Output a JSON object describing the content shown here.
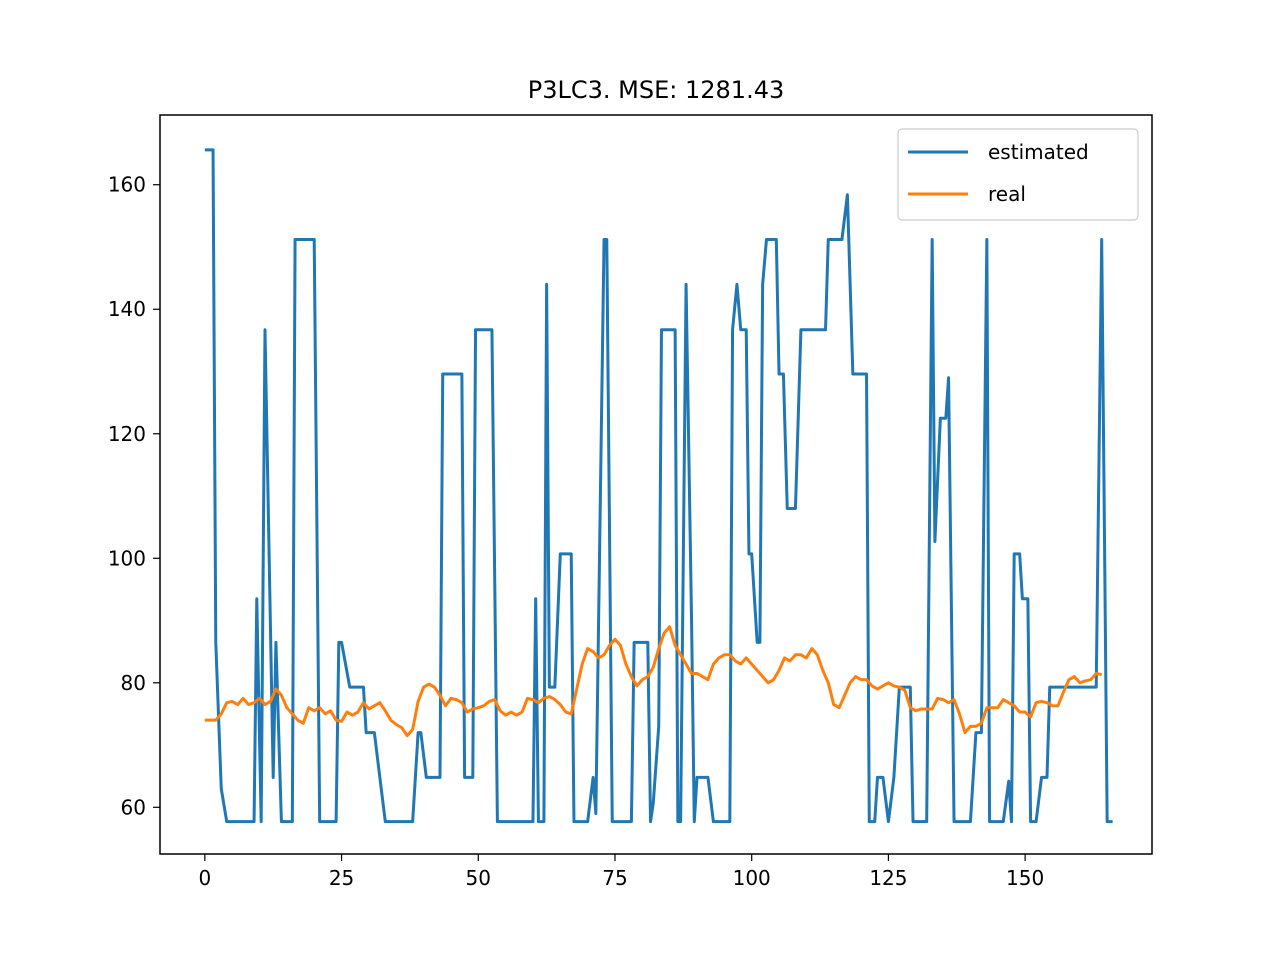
{
  "chart_data": {
    "type": "line",
    "title": "P3LC3. MSE: 1281.43",
    "xlabel": "",
    "ylabel": "",
    "xlim": [
      -8.2,
      173.2
    ],
    "ylim": [
      52.5,
      171.2
    ],
    "x_ticks": [
      0,
      25,
      50,
      75,
      100,
      125,
      150
    ],
    "y_ticks": [
      60,
      80,
      100,
      120,
      140,
      160
    ],
    "grid": false,
    "legend_position": "upper right",
    "series": [
      {
        "name": "estimated",
        "color": "#1f77b4",
        "points": [
          [
            0,
            165.6
          ],
          [
            1.5,
            165.6
          ],
          [
            2,
            86.5
          ],
          [
            3,
            63
          ],
          [
            4,
            57.7
          ],
          [
            5,
            57.7
          ],
          [
            9,
            57.7
          ],
          [
            9.5,
            93.5
          ],
          [
            10.3,
            57.7
          ],
          [
            11,
            136.7
          ],
          [
            12.5,
            64.8
          ],
          [
            13,
            86.5
          ],
          [
            14,
            57.7
          ],
          [
            16,
            57.7
          ],
          [
            16.5,
            151.2
          ],
          [
            20,
            151.2
          ],
          [
            21,
            57.7
          ],
          [
            24,
            57.7
          ],
          [
            24.5,
            86.5
          ],
          [
            25,
            86.5
          ],
          [
            26.5,
            79.3
          ],
          [
            29,
            79.3
          ],
          [
            29.5,
            72
          ],
          [
            31,
            72
          ],
          [
            32,
            64.8
          ],
          [
            33,
            57.7
          ],
          [
            38,
            57.7
          ],
          [
            39,
            72
          ],
          [
            39.5,
            72
          ],
          [
            40.5,
            64.8
          ],
          [
            43,
            64.8
          ],
          [
            43.5,
            129.6
          ],
          [
            47,
            129.6
          ],
          [
            47.5,
            64.8
          ],
          [
            49,
            64.8
          ],
          [
            49.5,
            136.7
          ],
          [
            52.5,
            136.7
          ],
          [
            53.5,
            57.7
          ],
          [
            60,
            57.7
          ],
          [
            60.5,
            93.5
          ],
          [
            61,
            57.7
          ],
          [
            62,
            57.7
          ],
          [
            62.5,
            144
          ],
          [
            63,
            79.3
          ],
          [
            64,
            79.3
          ],
          [
            65,
            100.7
          ],
          [
            67,
            100.7
          ],
          [
            67.5,
            57.7
          ],
          [
            70,
            57.7
          ],
          [
            71,
            64.8
          ],
          [
            71.5,
            59
          ],
          [
            73,
            151.2
          ],
          [
            73.5,
            151.2
          ],
          [
            74.5,
            57.7
          ],
          [
            78,
            57.7
          ],
          [
            78.5,
            86.5
          ],
          [
            81,
            86.5
          ],
          [
            81.5,
            57.7
          ],
          [
            82,
            60.7
          ],
          [
            83,
            73
          ],
          [
            83.5,
            136.7
          ],
          [
            86,
            136.7
          ],
          [
            86.5,
            57.7
          ],
          [
            87,
            57.7
          ],
          [
            88,
            144
          ],
          [
            89,
            90
          ],
          [
            89.5,
            57.7
          ],
          [
            90,
            64.8
          ],
          [
            92,
            64.8
          ],
          [
            93,
            57.7
          ],
          [
            96,
            57.7
          ],
          [
            96.5,
            136.7
          ],
          [
            97.3,
            144
          ],
          [
            98,
            136.7
          ],
          [
            99,
            136.7
          ],
          [
            99.5,
            100.7
          ],
          [
            100,
            100.7
          ],
          [
            101,
            86.5
          ],
          [
            101.5,
            86.5
          ],
          [
            102,
            144
          ],
          [
            102.7,
            151.2
          ],
          [
            104.5,
            151.2
          ],
          [
            105,
            129.6
          ],
          [
            105.8,
            129.6
          ],
          [
            106.5,
            108
          ],
          [
            108,
            108
          ],
          [
            109,
            136.7
          ],
          [
            113.5,
            136.7
          ],
          [
            114,
            151.2
          ],
          [
            116.5,
            151.2
          ],
          [
            117.5,
            158.4
          ],
          [
            118.5,
            129.6
          ],
          [
            121,
            129.6
          ],
          [
            121.5,
            57.7
          ],
          [
            122.5,
            57.7
          ],
          [
            123,
            64.8
          ],
          [
            124,
            64.8
          ],
          [
            125,
            57.7
          ],
          [
            126,
            64.8
          ],
          [
            127,
            79.3
          ],
          [
            129,
            79.3
          ],
          [
            129.5,
            57.7
          ],
          [
            132,
            57.7
          ],
          [
            133,
            151.2
          ],
          [
            133.5,
            102.7
          ],
          [
            134.5,
            122.5
          ],
          [
            135.5,
            122.5
          ],
          [
            136,
            129
          ],
          [
            137,
            57.7
          ],
          [
            140,
            57.7
          ],
          [
            141,
            72
          ],
          [
            142,
            72
          ],
          [
            143,
            151.2
          ],
          [
            143.5,
            57.7
          ],
          [
            146,
            57.7
          ],
          [
            147,
            64.2
          ],
          [
            147.5,
            57.7
          ],
          [
            148,
            100.7
          ],
          [
            149,
            100.7
          ],
          [
            149.5,
            93.5
          ],
          [
            150.5,
            93.5
          ],
          [
            151,
            57.7
          ],
          [
            152,
            57.7
          ],
          [
            153,
            64.8
          ],
          [
            154,
            64.8
          ],
          [
            154.5,
            79.3
          ],
          [
            163,
            79.3
          ],
          [
            164,
            151.2
          ],
          [
            165,
            57.7
          ],
          [
            166,
            57.7
          ]
        ]
      },
      {
        "name": "real",
        "color": "#ff7f0e",
        "points": [
          [
            0,
            74
          ],
          [
            1,
            74
          ],
          [
            2,
            74
          ],
          [
            3,
            75
          ],
          [
            4,
            76.8
          ],
          [
            5,
            77
          ],
          [
            6,
            76.5
          ],
          [
            7,
            77.5
          ],
          [
            8,
            76.5
          ],
          [
            9,
            76.8
          ],
          [
            10,
            77.5
          ],
          [
            11,
            76.5
          ],
          [
            12,
            77
          ],
          [
            13,
            79
          ],
          [
            14,
            78
          ],
          [
            15,
            76
          ],
          [
            16,
            75
          ],
          [
            17,
            74
          ],
          [
            18,
            73.5
          ],
          [
            19,
            76
          ],
          [
            20,
            75.5
          ],
          [
            21,
            76
          ],
          [
            22,
            75
          ],
          [
            23,
            75.5
          ],
          [
            24,
            74
          ],
          [
            25,
            73.8
          ],
          [
            26,
            75.3
          ],
          [
            27,
            74.8
          ],
          [
            28,
            75.3
          ],
          [
            29,
            76.8
          ],
          [
            30,
            75.8
          ],
          [
            31,
            76.3
          ],
          [
            32,
            76.8
          ],
          [
            33,
            75.5
          ],
          [
            34,
            74
          ],
          [
            35,
            73.3
          ],
          [
            36,
            72.8
          ],
          [
            37,
            71.5
          ],
          [
            38,
            72.5
          ],
          [
            39,
            77
          ],
          [
            40,
            79.3
          ],
          [
            41,
            79.8
          ],
          [
            42,
            79.3
          ],
          [
            43,
            78
          ],
          [
            44,
            76.3
          ],
          [
            45,
            77.5
          ],
          [
            46,
            77.3
          ],
          [
            47,
            76.8
          ],
          [
            48,
            75.3
          ],
          [
            49,
            75.8
          ],
          [
            50,
            76
          ],
          [
            51,
            76.3
          ],
          [
            52,
            77
          ],
          [
            53,
            77.3
          ],
          [
            54,
            75.5
          ],
          [
            55,
            74.8
          ],
          [
            56,
            75.3
          ],
          [
            57,
            74.8
          ],
          [
            58,
            75.3
          ],
          [
            59,
            77.5
          ],
          [
            60,
            77.3
          ],
          [
            61,
            76.8
          ],
          [
            62,
            77.5
          ],
          [
            63,
            77.8
          ],
          [
            64,
            77.3
          ],
          [
            65,
            76.5
          ],
          [
            66,
            75.3
          ],
          [
            67,
            75
          ],
          [
            68,
            79
          ],
          [
            69,
            83
          ],
          [
            70,
            85.5
          ],
          [
            71,
            85
          ],
          [
            72,
            84
          ],
          [
            73,
            84.5
          ],
          [
            74,
            86
          ],
          [
            75,
            87
          ],
          [
            76,
            86
          ],
          [
            77,
            83
          ],
          [
            78,
            81
          ],
          [
            79,
            79.5
          ],
          [
            80,
            80.5
          ],
          [
            81,
            81
          ],
          [
            82,
            82.5
          ],
          [
            83,
            85.5
          ],
          [
            84,
            88
          ],
          [
            85,
            89
          ],
          [
            86,
            86
          ],
          [
            87,
            84.5
          ],
          [
            88,
            83
          ],
          [
            89,
            81.5
          ],
          [
            90,
            81.5
          ],
          [
            91,
            81
          ],
          [
            92,
            80.5
          ],
          [
            93,
            83
          ],
          [
            94,
            84
          ],
          [
            95,
            84.5
          ],
          [
            96,
            84.5
          ],
          [
            97,
            83.5
          ],
          [
            98,
            83
          ],
          [
            99,
            84
          ],
          [
            100,
            83
          ],
          [
            101,
            82
          ],
          [
            102,
            81
          ],
          [
            103,
            80
          ],
          [
            104,
            80.5
          ],
          [
            105,
            82
          ],
          [
            106,
            84
          ],
          [
            107,
            83.5
          ],
          [
            108,
            84.5
          ],
          [
            109,
            84.5
          ],
          [
            110,
            84
          ],
          [
            111,
            85.5
          ],
          [
            112,
            84.5
          ],
          [
            113,
            82
          ],
          [
            114,
            80
          ],
          [
            115,
            76.5
          ],
          [
            116,
            76
          ],
          [
            117,
            78
          ],
          [
            118,
            80
          ],
          [
            119,
            81
          ],
          [
            120,
            80.5
          ],
          [
            121,
            80.5
          ],
          [
            122,
            79.5
          ],
          [
            123,
            79
          ],
          [
            124,
            79.5
          ],
          [
            125,
            80
          ],
          [
            126,
            79.5
          ],
          [
            127,
            79.3
          ],
          [
            128,
            78.8
          ],
          [
            129,
            76
          ],
          [
            130,
            75.5
          ],
          [
            131,
            75.8
          ],
          [
            132,
            75.8
          ],
          [
            133,
            75.8
          ],
          [
            134,
            77.5
          ],
          [
            135,
            77.3
          ],
          [
            136,
            76.8
          ],
          [
            137,
            77.3
          ],
          [
            138,
            75
          ],
          [
            139,
            72
          ],
          [
            140,
            73
          ],
          [
            141,
            73
          ],
          [
            142,
            73.5
          ],
          [
            143,
            76
          ],
          [
            144,
            76
          ],
          [
            145,
            76
          ],
          [
            146,
            77.3
          ],
          [
            147,
            76.8
          ],
          [
            148,
            76.3
          ],
          [
            149,
            75.3
          ],
          [
            150,
            75.3
          ],
          [
            151,
            74.5
          ],
          [
            152,
            76.8
          ],
          [
            153,
            77
          ],
          [
            154,
            76.8
          ],
          [
            155,
            76.3
          ],
          [
            156,
            76.3
          ],
          [
            157,
            78.5
          ],
          [
            158,
            80.5
          ],
          [
            159,
            81
          ],
          [
            160,
            80
          ],
          [
            161,
            80.3
          ],
          [
            162,
            80.5
          ],
          [
            163,
            81.5
          ],
          [
            164,
            81.3
          ]
        ]
      }
    ]
  }
}
